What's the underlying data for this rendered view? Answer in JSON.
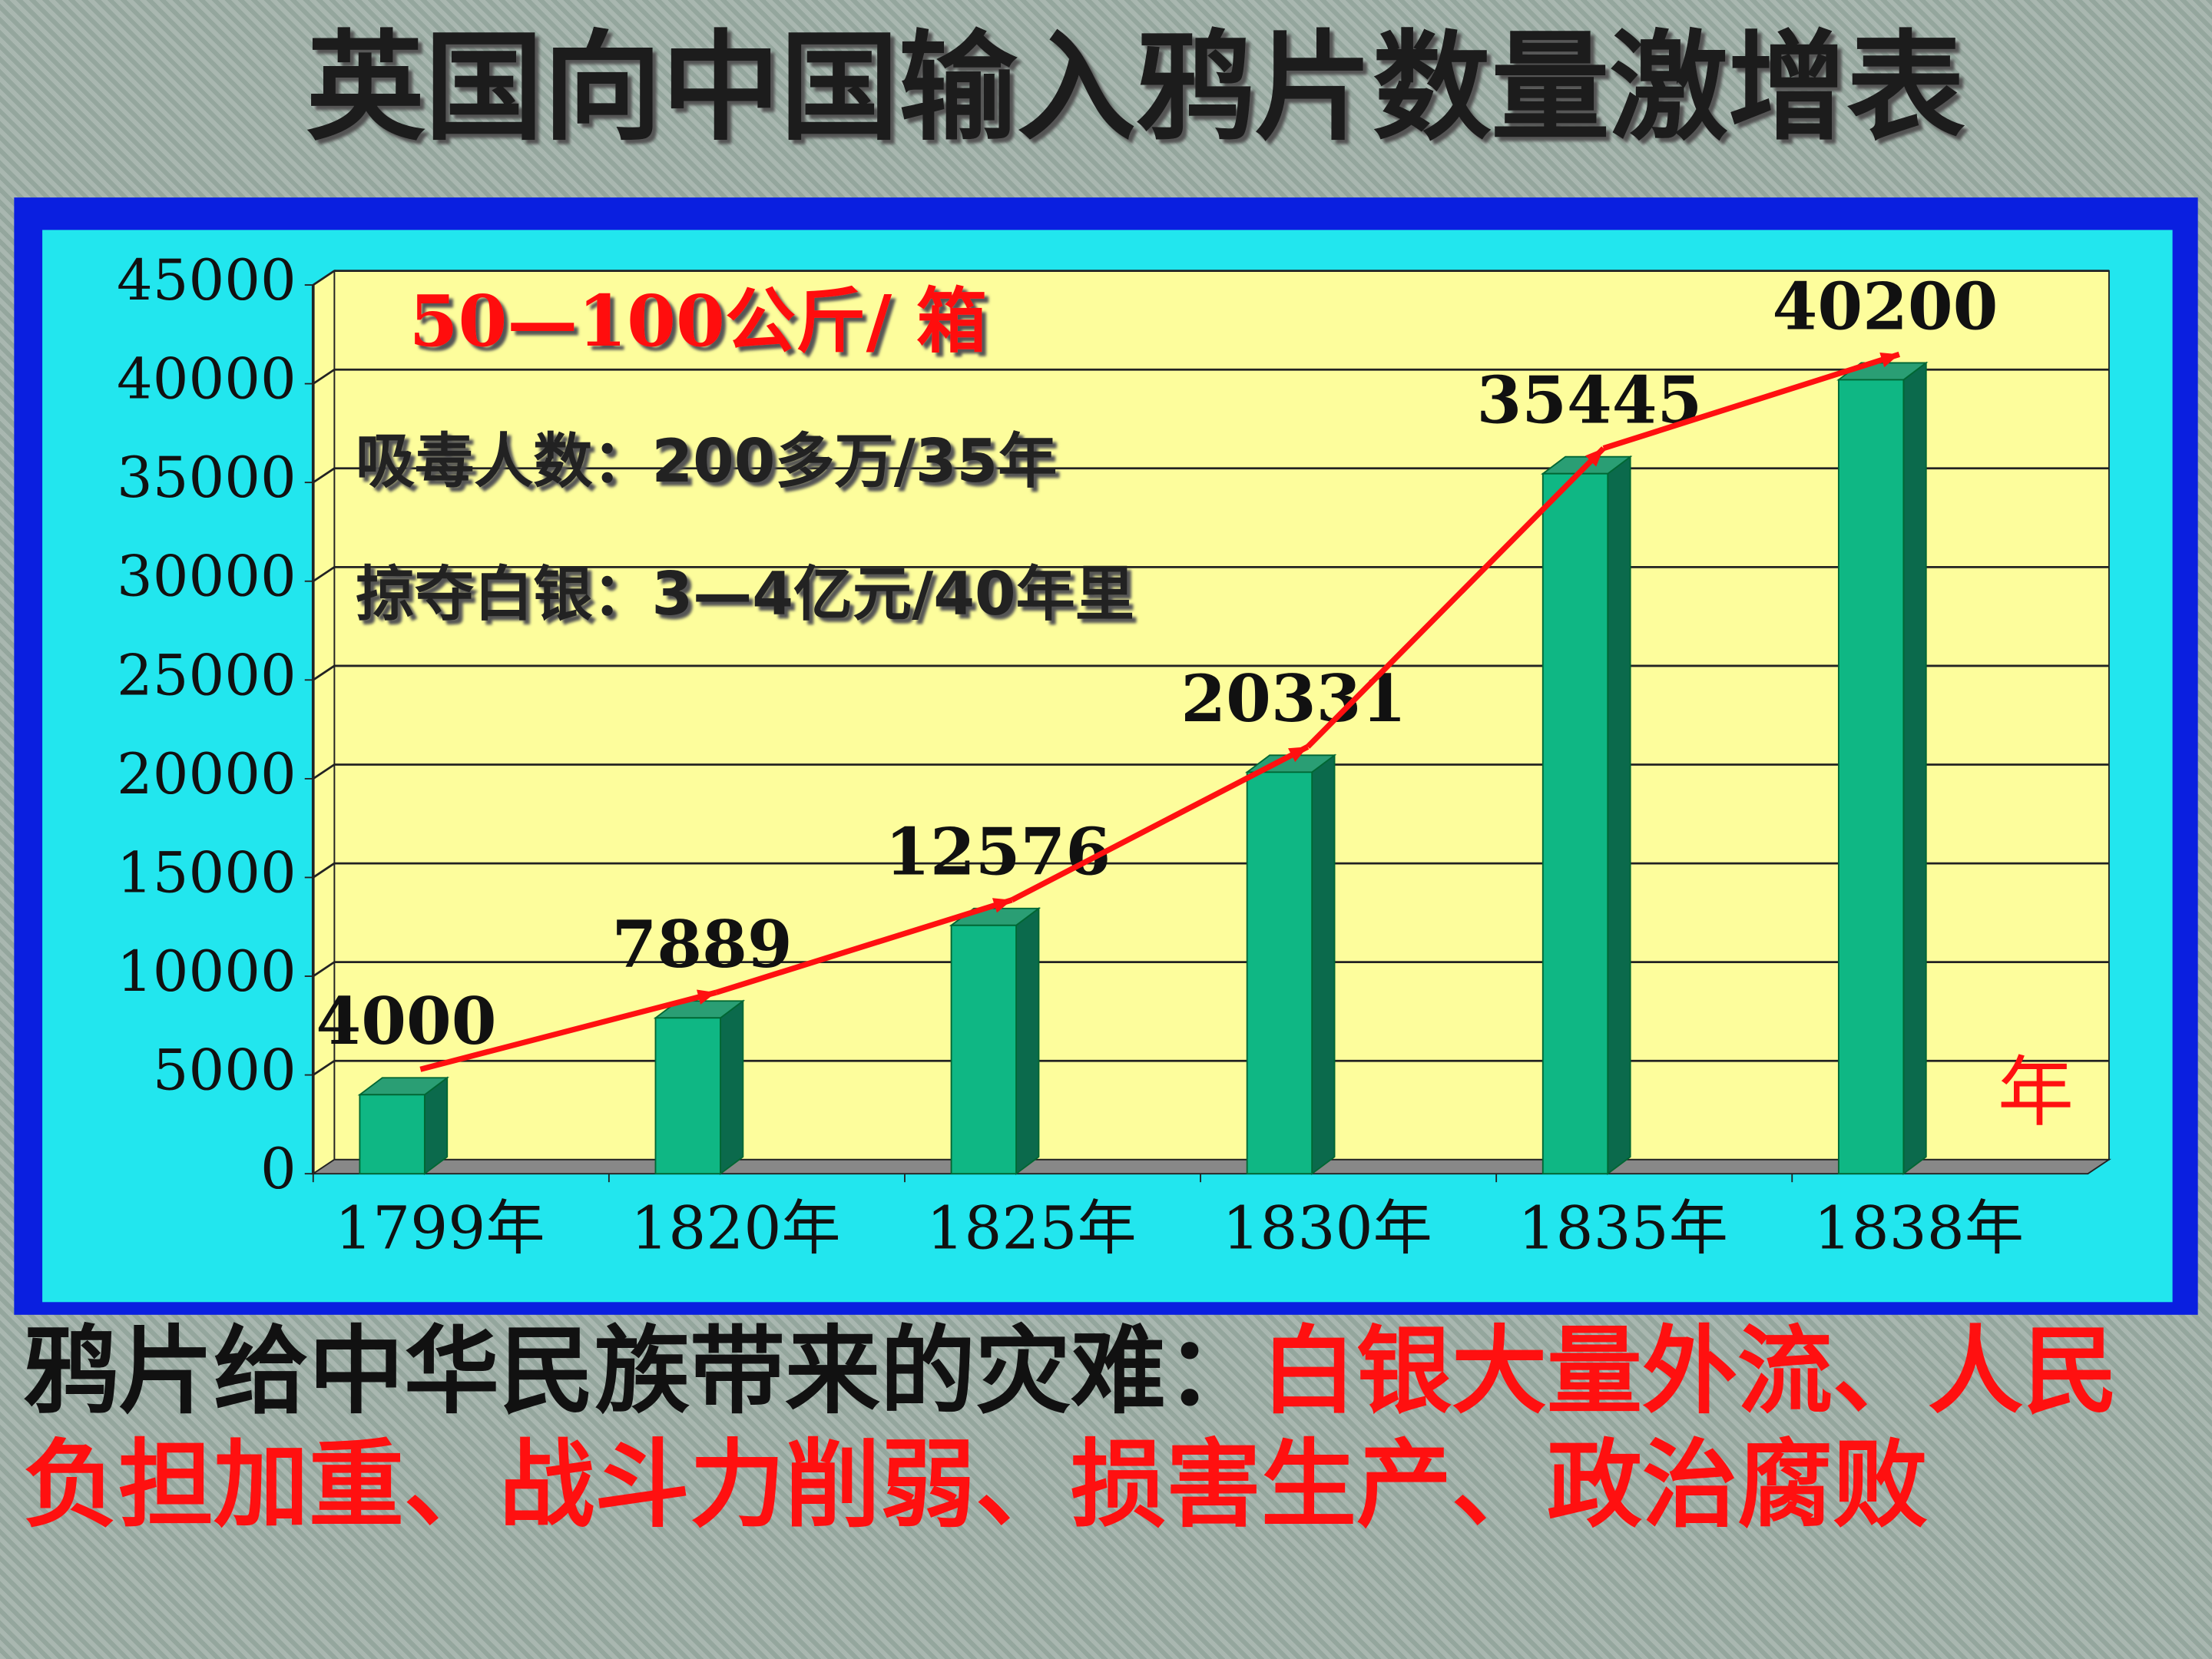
{
  "chart_data": {
    "type": "bar",
    "title": "英国向中国输入鸦片数量激增表",
    "categories": [
      "1799年",
      "1820年",
      "1825年",
      "1830年",
      "1835年",
      "1838年"
    ],
    "values": [
      4000,
      7889,
      12576,
      20331,
      35445,
      40200
    ],
    "color": "#0fb784",
    "ylim": [
      0,
      45000
    ],
    "yticks": [
      0,
      5000,
      10000,
      15000,
      20000,
      25000,
      30000,
      35000,
      40000,
      45000
    ],
    "grid": true,
    "unit_note": "50—100公斤/ 箱",
    "x_unit": "年",
    "annotations": [
      "吸毒人数：200多万/35年",
      "掠夺白银：3—4亿元/40年里"
    ]
  },
  "caption": {
    "lead": "鸦片给中华民族带来的灾难：",
    "text": "白银大量外流、人民负担加重、战斗力削弱、损害生产、政治腐败"
  }
}
